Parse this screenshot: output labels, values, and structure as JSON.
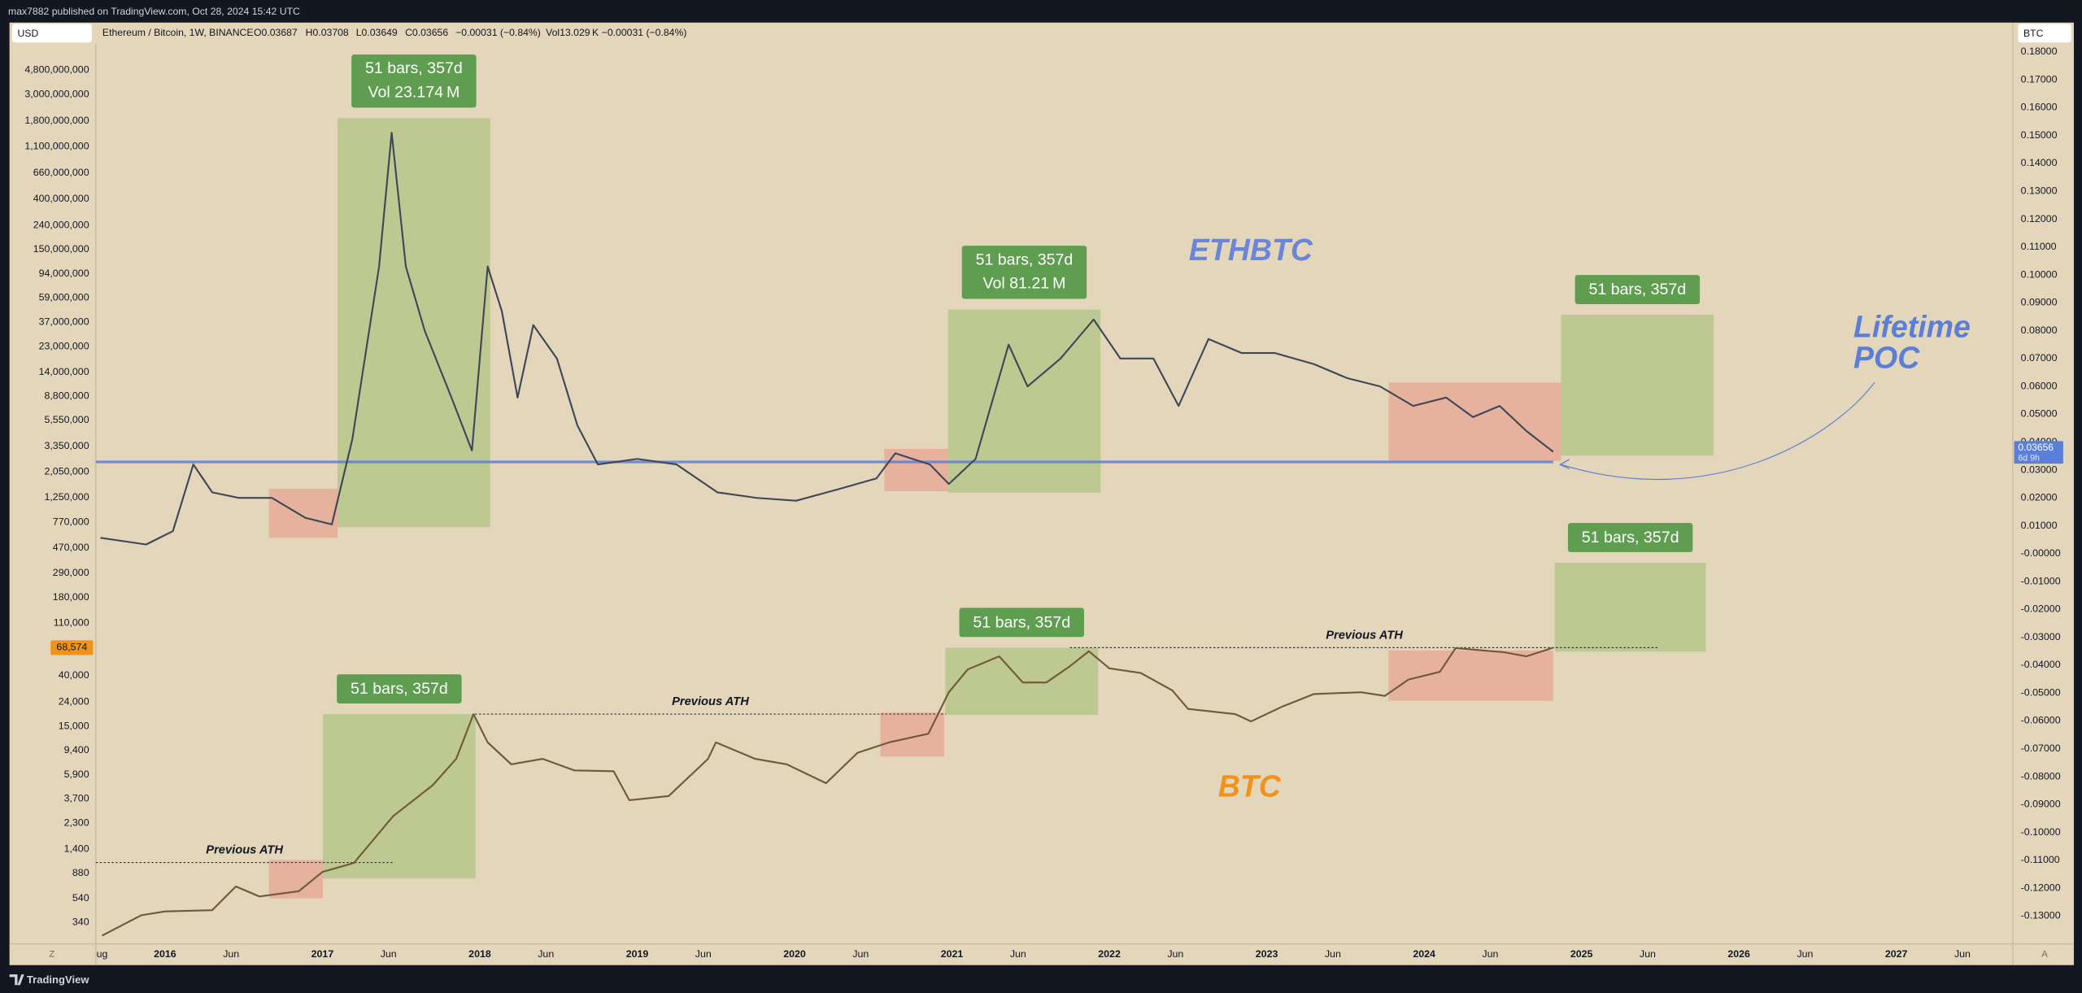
{
  "header": {
    "publisher": "max7882 published on TradingView.com, Oct 28, 2024 15:42 UTC",
    "left_currency": "USD",
    "right_currency": "BTC",
    "corner_left": "Z",
    "corner_right": "A"
  },
  "symbol": {
    "name": "Ethereum / Bitcoin, 1W, BINANCE",
    "open": "O0.03687",
    "high": "H0.03708",
    "low": "L0.03649",
    "close": "C0.03656",
    "change": "−0.00031 (−0.84%)",
    "volume": "Vol13.029 K",
    "volume_change": "−0.00031 (−0.84%)"
  },
  "footer": {
    "brand": "TradingView"
  },
  "chart_data": {
    "type": "line",
    "log_y": true,
    "grid": false,
    "xlim": [
      2015.56,
      2027.74
    ],
    "xticks": [
      {
        "value": 2015.6,
        "label": "ug"
      },
      2016,
      {
        "value": 2016.42,
        "label": "Jun"
      },
      2017,
      {
        "value": 2017.42,
        "label": "Jun"
      },
      2018,
      {
        "value": 2018.42,
        "label": "Jun"
      },
      2019,
      {
        "value": 2019.42,
        "label": "Jun"
      },
      2020,
      {
        "value": 2020.42,
        "label": "Jun"
      },
      2021,
      {
        "value": 2021.42,
        "label": "Jun"
      },
      2022,
      {
        "value": 2022.42,
        "label": "Jun"
      },
      2023,
      {
        "value": 2023.42,
        "label": "Jun"
      },
      2024,
      {
        "value": 2024.42,
        "label": "Jun"
      },
      2025,
      {
        "value": 2025.42,
        "label": "Jun"
      },
      2026,
      {
        "value": 2026.42,
        "label": "Jun"
      },
      2027,
      {
        "value": 2027.42,
        "label": "Jun"
      }
    ],
    "ylim": [
      230,
      8000000000
    ],
    "yticks": [
      {
        "value": 4800000000,
        "label": "4,800,000,000"
      },
      {
        "value": 3000000000,
        "label": "3,000,000,000"
      },
      {
        "value": 1800000000,
        "label": "1,800,000,000"
      },
      {
        "value": 1100000000,
        "label": "1,100,000,000"
      },
      {
        "value": 660000000,
        "label": "660,000,000"
      },
      {
        "value": 400000000,
        "label": "400,000,000"
      },
      {
        "value": 240000000,
        "label": "240,000,000"
      },
      {
        "value": 150000000,
        "label": "150,000,000"
      },
      {
        "value": 94000000,
        "label": "94,000,000"
      },
      {
        "value": 59000000,
        "label": "59,000,000"
      },
      {
        "value": 37000000,
        "label": "37,000,000"
      },
      {
        "value": 23000000,
        "label": "23,000,000"
      },
      {
        "value": 14000000,
        "label": "14,000,000"
      },
      {
        "value": 8800000,
        "label": "8,800,000"
      },
      {
        "value": 5550000,
        "label": "5,550,000"
      },
      {
        "value": 3350000,
        "label": "3,350,000"
      },
      {
        "value": 2050000,
        "label": "2,050,000"
      },
      {
        "value": 1250000,
        "label": "1,250,000"
      },
      {
        "value": 770000,
        "label": "770,000"
      },
      {
        "value": 470000,
        "label": "470,000"
      },
      {
        "value": 290000,
        "label": "290,000"
      },
      {
        "value": 180000,
        "label": "180,000"
      },
      {
        "value": 110000,
        "label": "110,000"
      },
      {
        "value": 40000,
        "label": "40,000"
      },
      {
        "value": 24000,
        "label": "24,000"
      },
      {
        "value": 15000,
        "label": "15,000"
      },
      {
        "value": 9400,
        "label": "9,400"
      },
      {
        "value": 5900,
        "label": "5,900"
      },
      {
        "value": 3700,
        "label": "3,700"
      },
      {
        "value": 2300,
        "label": "2,300"
      },
      {
        "value": 1400,
        "label": "1,400"
      },
      880,
      540,
      340
    ],
    "y2lim": [
      -0.1395,
      0.1829
    ],
    "y2ticks": [
      {
        "value": 0.18,
        "label": "0.18000"
      },
      {
        "value": 0.17,
        "label": "0.17000"
      },
      {
        "value": 0.16,
        "label": "0.16000"
      },
      {
        "value": 0.15,
        "label": "0.15000"
      },
      {
        "value": 0.14,
        "label": "0.14000"
      },
      {
        "value": 0.13,
        "label": "0.13000"
      },
      {
        "value": 0.12,
        "label": "0.12000"
      },
      {
        "value": 0.11,
        "label": "0.11000"
      },
      {
        "value": 0.1,
        "label": "0.10000"
      },
      {
        "value": 0.09,
        "label": "0.09000"
      },
      {
        "value": 0.08,
        "label": "0.08000"
      },
      {
        "value": 0.07,
        "label": "0.07000"
      },
      {
        "value": 0.06,
        "label": "0.06000"
      },
      {
        "value": 0.05,
        "label": "0.05000"
      },
      {
        "value": 0.04,
        "label": "0.04000"
      },
      {
        "value": 0.03,
        "label": "0.03000"
      },
      {
        "value": 0.02,
        "label": "0.02000"
      },
      {
        "value": 0.01,
        "label": "0.01000"
      },
      {
        "value": 0,
        "label": "-0.00000"
      },
      {
        "value": -0.01,
        "label": "-0.01000"
      },
      {
        "value": -0.02,
        "label": "-0.02000"
      },
      {
        "value": -0.03,
        "label": "-0.03000"
      },
      {
        "value": -0.04,
        "label": "-0.04000"
      },
      {
        "value": -0.05,
        "label": "-0.05000"
      },
      {
        "value": -0.06,
        "label": "-0.06000"
      },
      {
        "value": -0.07,
        "label": "-0.07000"
      },
      {
        "value": -0.08,
        "label": "-0.08000"
      },
      {
        "value": -0.09,
        "label": "-0.09000"
      },
      {
        "value": -0.1,
        "label": "-0.10000"
      },
      {
        "value": -0.11,
        "label": "-0.11000"
      },
      {
        "value": -0.12,
        "label": "-0.12000"
      },
      {
        "value": -0.13,
        "label": "-0.13000"
      }
    ],
    "series": [
      {
        "name": "ETHBTC",
        "axis": "y2",
        "color": "#3e4757",
        "label_color": "#6a86d8",
        "x": [
          2015.59,
          2015.88,
          2016.05,
          2016.18,
          2016.3,
          2016.47,
          2016.68,
          2016.89,
          2017.06,
          2017.19,
          2017.36,
          2017.44,
          2017.53,
          2017.65,
          2017.82,
          2017.95,
          2018.05,
          2018.14,
          2018.24,
          2018.34,
          2018.49,
          2018.62,
          2018.75,
          2019.0,
          2019.25,
          2019.51,
          2019.76,
          2020.01,
          2020.27,
          2020.52,
          2020.64,
          2020.86,
          2020.98,
          2021.15,
          2021.36,
          2021.48,
          2021.69,
          2021.9,
          2022.07,
          2022.28,
          2022.44,
          2022.63,
          2022.84,
          2023.05,
          2023.3,
          2023.51,
          2023.72,
          2023.93,
          2024.14,
          2024.31,
          2024.48,
          2024.65,
          2024.82
        ],
        "values": [
          0.0057,
          0.0033,
          0.0081,
          0.032,
          0.022,
          0.02,
          0.02,
          0.0129,
          0.0105,
          0.041,
          0.103,
          0.151,
          0.103,
          0.08,
          0.056,
          0.037,
          0.103,
          0.087,
          0.056,
          0.082,
          0.07,
          0.046,
          0.032,
          0.034,
          0.032,
          0.022,
          0.02,
          0.019,
          0.023,
          0.027,
          0.036,
          0.032,
          0.025,
          0.034,
          0.075,
          0.06,
          0.07,
          0.084,
          0.07,
          0.07,
          0.053,
          0.077,
          0.072,
          0.072,
          0.068,
          0.063,
          0.06,
          0.053,
          0.056,
          0.049,
          0.053,
          0.044,
          0.03656
        ]
      },
      {
        "name": "BTC",
        "axis": "y",
        "color": "#6e5a36",
        "label_color": "#f0921c",
        "x": [
          2015.6,
          2015.85,
          2016.0,
          2016.3,
          2016.45,
          2016.6,
          2016.85,
          2017.0,
          2017.2,
          2017.45,
          2017.7,
          2017.85,
          2017.96,
          2018.05,
          2018.2,
          2018.4,
          2018.6,
          2018.85,
          2018.95,
          2019.2,
          2019.45,
          2019.5,
          2019.75,
          2019.95,
          2020.2,
          2020.4,
          2020.6,
          2020.85,
          2020.98,
          2021.1,
          2021.3,
          2021.45,
          2021.6,
          2021.75,
          2021.87,
          2022.0,
          2022.2,
          2022.4,
          2022.5,
          2022.8,
          2022.9,
          2023.1,
          2023.3,
          2023.6,
          2023.75,
          2023.9,
          2024.1,
          2024.2,
          2024.5,
          2024.65,
          2024.82
        ],
        "values": [
          263,
          390,
          420,
          430,
          680,
          560,
          620,
          900,
          1070,
          2650,
          4800,
          8000,
          19000,
          11000,
          7200,
          8000,
          6400,
          6300,
          3600,
          3900,
          8000,
          11000,
          8000,
          7200,
          5000,
          9000,
          11000,
          13000,
          29000,
          45000,
          58000,
          35000,
          35000,
          48000,
          64000,
          46000,
          42000,
          30000,
          21000,
          19000,
          16500,
          22000,
          28000,
          29000,
          27000,
          37000,
          43000,
          68000,
          63000,
          58000,
          68574
        ]
      }
    ],
    "price_tag_left": {
      "value": 68574,
      "label": "68,574",
      "color": "#f0921c"
    },
    "price_tag_right": {
      "value": 0.03656,
      "countdown": "6d 9h",
      "color": "#5b7fd6"
    },
    "poc": {
      "value": 0.0329,
      "color": "#5b7fd6",
      "text": [
        "Lifetime",
        "POC"
      ]
    },
    "measures": [
      {
        "axis": "y2",
        "x": [
          2017.096,
          2018.066
        ],
        "y": [
          0.0095,
          0.1562
        ],
        "color": "#8dbb5e",
        "label": "51 bars, 357d",
        "volume": "Vol 23.174 M"
      },
      {
        "axis": "y2",
        "x": [
          2020.975,
          2021.944
        ],
        "y": [
          0.0219,
          0.0876
        ],
        "color": "#8dbb5e",
        "label": "51 bars, 357d",
        "volume": "Vol 81.21 M"
      },
      {
        "axis": "y2",
        "x": [
          2024.87,
          2025.84
        ],
        "y": [
          0.0352,
          0.0857
        ],
        "color": "#8dbb5e",
        "label": "51 bars, 357d"
      },
      {
        "axis": "y2",
        "x": [
          2016.66,
          2017.096
        ],
        "y": [
          0.0057,
          0.0233
        ],
        "color": "#e8877a"
      },
      {
        "axis": "y2",
        "x": [
          2020.57,
          2020.975
        ],
        "y": [
          0.0224,
          0.0376
        ],
        "color": "#e8877a"
      },
      {
        "axis": "y2",
        "x": [
          2023.774,
          2024.87
        ],
        "y": [
          0.0333,
          0.0614
        ],
        "color": "#e8877a"
      },
      {
        "axis": "y",
        "x": [
          2017.003,
          2017.973
        ],
        "y": [
          792,
          19000
        ],
        "color": "#8dbb5e",
        "label": "51 bars, 357d"
      },
      {
        "axis": "y",
        "x": [
          2020.958,
          2021.928
        ],
        "y": [
          18700,
          68600
        ],
        "color": "#8dbb5e",
        "label": "51 bars, 357d"
      },
      {
        "axis": "y",
        "x": [
          2024.83,
          2025.79
        ],
        "y": [
          63600,
          353700
        ],
        "color": "#8dbb5e",
        "label": "51 bars, 357d"
      },
      {
        "axis": "y",
        "x": [
          2016.66,
          2017.003
        ],
        "y": [
          540,
          1135
        ],
        "color": "#e8877a"
      },
      {
        "axis": "y",
        "x": [
          2020.545,
          2020.95
        ],
        "y": [
          8370,
          19600
        ],
        "color": "#e8877a"
      },
      {
        "axis": "y",
        "x": [
          2023.774,
          2024.82
        ],
        "y": [
          24600,
          65000
        ],
        "color": "#e8877a"
      }
    ],
    "ath_lines": [
      {
        "label": "Previous ATH",
        "x": [
          2015.56,
          2017.45
        ],
        "value": 1080
      },
      {
        "label": "Previous ATH",
        "x": [
          2017.97,
          2020.96
        ],
        "value": 19000
      },
      {
        "label": "Previous ATH",
        "x": [
          2021.75,
          2025.49
        ],
        "value": 68574
      }
    ]
  }
}
